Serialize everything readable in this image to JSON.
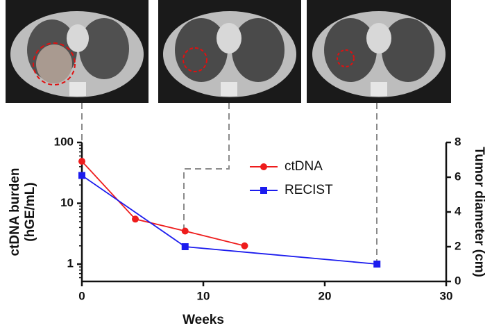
{
  "chart_data": {
    "type": "line",
    "xlabel": "Weeks",
    "ylabel": [
      "ctDNA burden",
      "(hGE/mL)"
    ],
    "y2label": "Tumor diameter (cm)",
    "xlim": [
      0,
      30
    ],
    "xticks": [
      0,
      10,
      20,
      30
    ],
    "ylim": [
      0.52,
      100
    ],
    "yticks": [
      1,
      10,
      100
    ],
    "ylog": true,
    "y2lim": [
      0,
      8
    ],
    "y2ticks": [
      0,
      2,
      4,
      6,
      8
    ],
    "legend": "upper center",
    "series": [
      {
        "name": "ctDNA",
        "color": "#ee1c1c",
        "marker": "circle",
        "axis": "y",
        "x": [
          0,
          4.4,
          8.5,
          13.4
        ],
        "values": [
          49,
          5.5,
          3.5,
          2.0
        ]
      },
      {
        "name": "RECIST",
        "color": "#1c1cee",
        "marker": "square",
        "axis": "y2",
        "x": [
          0,
          8.5,
          24.3
        ],
        "values": [
          6.1,
          2.0,
          1.0
        ]
      }
    ]
  }
}
